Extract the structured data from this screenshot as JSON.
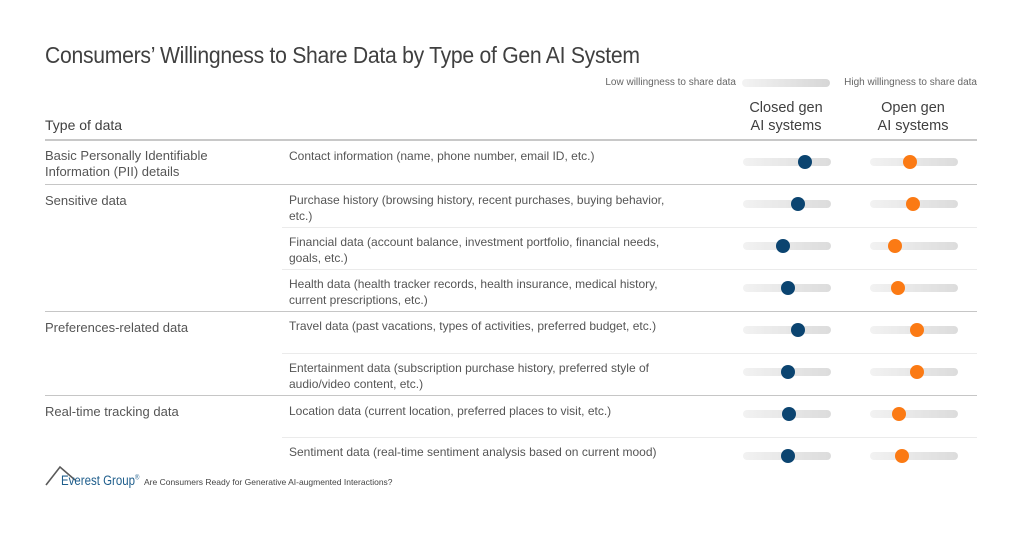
{
  "title": "Consumers’ Willingness to Share Data by Type of Gen AI System",
  "legend": {
    "low_label": "Low willingness to share data",
    "high_label": "High willingness to share data"
  },
  "columns": {
    "type_header": "Type of data",
    "closed_line1": "Closed gen",
    "closed_line2": "AI systems",
    "open_line1": "Open gen",
    "open_line2": "AI systems"
  },
  "colors": {
    "closed": "#0b4470",
    "open": "#fb7a14",
    "track_start": "#f2f2f2",
    "track_end": "#dcdcdc"
  },
  "groups": [
    {
      "label": "Basic Personally Identifiable Information (PII) details"
    },
    {
      "label": "Sensitive data"
    },
    {
      "label": "Preferences-related data"
    },
    {
      "label": "Real-time tracking data"
    }
  ],
  "rows": [
    {
      "label": "Contact information (name, phone number, email ID, etc.)",
      "closed": 0.71,
      "open": 0.46
    },
    {
      "label": "Purchase history (browsing history, recent purchases, buying behavior, etc.)",
      "closed": 0.63,
      "open": 0.49
    },
    {
      "label": "Financial data (account balance, investment portfolio, financial needs, goals, etc.)",
      "closed": 0.46,
      "open": 0.28
    },
    {
      "label": "Health data (health tracker records, health insurance, medical history, current prescriptions, etc.)",
      "closed": 0.51,
      "open": 0.32
    },
    {
      "label": "Travel data (past vacations, types of activities, preferred budget, etc.)",
      "closed": 0.62,
      "open": 0.53
    },
    {
      "label": "Entertainment data (subscription purchase history, preferred style of audio/video content, etc.)",
      "closed": 0.51,
      "open": 0.53
    },
    {
      "label": "Location data (current location, preferred places to visit, etc.)",
      "closed": 0.52,
      "open": 0.33
    },
    {
      "label": "Sentiment data (real-time sentiment analysis based on current mood)",
      "closed": 0.51,
      "open": 0.36
    }
  ],
  "footer": {
    "brand": "Everest Group",
    "registered": "®",
    "caption": "Are Consumers Ready for Generative AI-augmented Interactions?"
  },
  "chart_data": {
    "type": "scatter",
    "title": "Consumers’ Willingness to Share Data by Type of Gen AI System",
    "xlabel": "Willingness to share data (0 = low, 1 = high)",
    "ylabel": "Type of data",
    "xlim": [
      0,
      1
    ],
    "scale_labels": [
      "Low willingness to share data",
      "High willingness to share data"
    ],
    "categories": [
      "Contact information (name, phone number, email ID, etc.)",
      "Purchase history (browsing history, recent purchases, buying behavior, etc.)",
      "Financial data (account balance, investment portfolio, financial needs, goals, etc.)",
      "Health data (health tracker records, health insurance, medical history, current prescriptions, etc.)",
      "Travel data (past vacations, types of activities, preferred budget, etc.)",
      "Entertainment data (subscription purchase history, preferred style of audio/video content, etc.)",
      "Location data (current location, preferred places to visit, etc.)",
      "Sentiment data (real-time sentiment analysis based on current mood)"
    ],
    "category_groups": [
      {
        "group": "Basic Personally Identifiable Information (PII) details",
        "rows": [
          0
        ]
      },
      {
        "group": "Sensitive data",
        "rows": [
          1,
          2,
          3
        ]
      },
      {
        "group": "Preferences-related data",
        "rows": [
          4,
          5
        ]
      },
      {
        "group": "Real-time tracking data",
        "rows": [
          6,
          7
        ]
      }
    ],
    "series": [
      {
        "name": "Closed gen AI systems",
        "color": "#0b4470",
        "values": [
          0.71,
          0.63,
          0.46,
          0.51,
          0.62,
          0.51,
          0.52,
          0.51
        ]
      },
      {
        "name": "Open gen AI systems",
        "color": "#fb7a14",
        "values": [
          0.46,
          0.49,
          0.28,
          0.32,
          0.53,
          0.53,
          0.33,
          0.36
        ]
      }
    ],
    "grid": false,
    "legend_position": "top-right"
  }
}
